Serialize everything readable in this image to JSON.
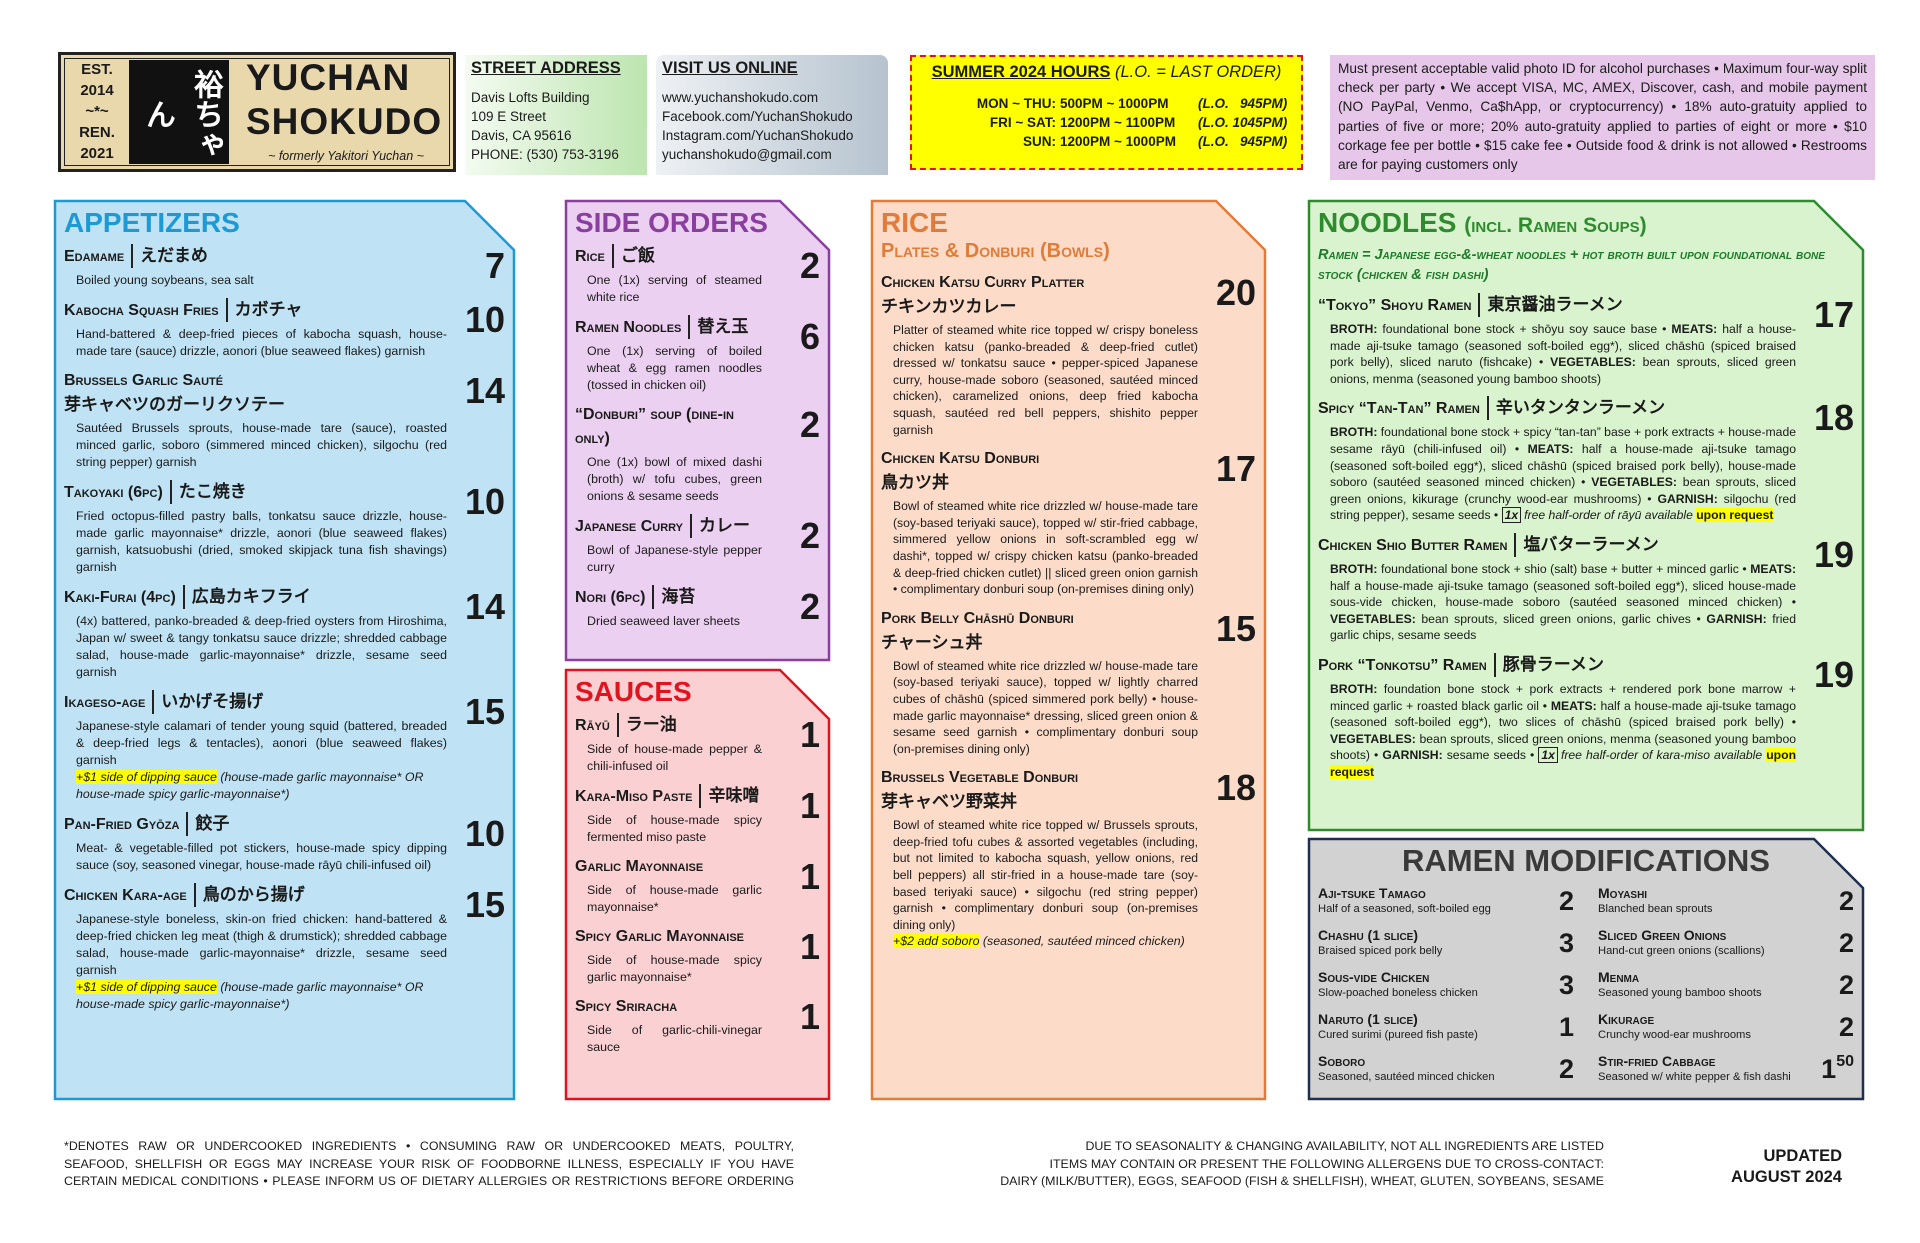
{
  "header": {
    "logo": {
      "est_label": "EST.",
      "est_year": "2014",
      "divider": "~*~",
      "ren_label": "REN.",
      "ren_year": "2021",
      "mark": "裕ちゃん",
      "name_line1": "YUCHAN",
      "name_line2": "SHOKUDO",
      "formerly": "~ formerly Yakitori Yuchan ~"
    },
    "address": {
      "heading": "STREET ADDRESS",
      "lines": [
        "Davis Lofts Building",
        "109 E Street",
        "Davis, CA 95616",
        "PHONE: (530) 753-3196"
      ]
    },
    "online": {
      "heading": "VISIT US ONLINE",
      "lines": [
        "www.yuchanshokudo.com",
        "Facebook.com/YuchanShokudo",
        "Instagram.com/YuchanShokudo",
        "yuchanshokudo@gmail.com"
      ]
    },
    "hours": {
      "title": "SUMMER 2024 HOURS",
      "note": "(L.O. = LAST ORDER)",
      "rows": [
        {
          "days": "MON ~ THU:",
          "time": "500PM ~ 1000PM",
          "lo": "(L.O.   945PM)"
        },
        {
          "days": "FRI ~ SAT:",
          "time": "1200PM ~ 1100PM",
          "lo": "(L.O. 1045PM)"
        },
        {
          "days": "SUN:",
          "time": "1200PM ~ 1000PM",
          "lo": "(L.O.   945PM)"
        }
      ]
    },
    "notice": "Must present acceptable valid photo ID for alcohol purchases • Maximum four-way split check per party • We accept VISA, MC, AMEX, Discover, cash, and mobile payment (NO PayPal, Venmo, Ca$hApp, or cryptocurrency) • 18% auto-gratuity applied to parties of five or more; 20% auto-gratuity applied to parties of eight or more • $10 corkage fee per bottle • $15 cake fee • Outside food & drink is not allowed • Restrooms are for paying customers only"
  },
  "appetizers": {
    "title": "APPETIZERS",
    "items": [
      {
        "name": "Edamame",
        "jp": "えだまめ",
        "price": "7",
        "desc": "Boiled young soybeans, sea salt"
      },
      {
        "name": "Kabocha Squash Fries",
        "jp": "カボチャ",
        "price": "10",
        "desc": "Hand-battered & deep-fried pieces of kabocha squash, house-made tare (sauce) drizzle, aonori (blue seaweed flakes) garnish"
      },
      {
        "name": "Brussels Garlic Sauté",
        "jp": "芽キャベツのガーリクソテー",
        "price": "14",
        "desc": "Sautéed Brussels sprouts, house-made tare (sauce), roasted minced garlic, soboro (simmered minced chicken), silgochu (red string pepper) garnish"
      },
      {
        "name": "Takoyaki (6pc)",
        "jp": "たこ焼き",
        "price": "10",
        "desc": "Fried octopus-filled pastry balls, tonkatsu sauce drizzle, house-made garlic mayonnaise* drizzle, aonori (blue seaweed flakes) garnish, katsuobushi (dried, smoked skipjack tuna fish shavings) garnish"
      },
      {
        "name": "Kaki-Furai (4pc)",
        "jp": "広島カキフライ",
        "price": "14",
        "desc": "(4x) battered, panko-breaded & deep-fried oysters from Hiroshima, Japan w/ sweet & tangy tonkatsu sauce drizzle; shredded cabbage salad, house-made garlic-mayonnaise* drizzle, sesame seed garnish"
      },
      {
        "name": "Ikageso-age",
        "jp": "いかげそ揚げ",
        "price": "15",
        "desc": "Japanese-style calamari of tender young squid (battered, breaded & deep-fried legs & tentacles), aonori (blue seaweed flakes) garnish",
        "addon": "+$1 side of dipping sauce",
        "addon_note": "(house-made garlic mayonnaise* OR house-made spicy garlic-mayonnaise*)"
      },
      {
        "name": "Pan-Fried Gyōza",
        "jp": "餃子",
        "price": "10",
        "desc": "Meat- & vegetable-filled pot stickers, house-made spicy dipping sauce (soy, seasoned vinegar, house-made rāyū chili-infused oil)"
      },
      {
        "name": "Chicken Kara-age",
        "jp": "鳥のから揚げ",
        "price": "15",
        "desc": "Japanese-style boneless, skin-on fried chicken: hand-battered & deep-fried chicken leg meat (thigh & drumstick); shredded cabbage salad, house-made garlic-mayonnaise* drizzle, sesame seed garnish",
        "addon": "+$1 side of dipping sauce",
        "addon_note": "(house-made garlic mayonnaise* OR house-made spicy garlic-mayonnaise*)"
      }
    ]
  },
  "side_orders": {
    "title": "SIDE ORDERS",
    "items": [
      {
        "name": "Rice",
        "jp": "ご飯",
        "price": "2",
        "desc": "One (1x) serving of steamed white rice"
      },
      {
        "name": "Ramen Noodles",
        "jp": "替え玉",
        "price": "6",
        "desc": "One (1x) serving of boiled wheat & egg ramen noodles (tossed in chicken oil)"
      },
      {
        "name": "“Donburi” soup (dine-in only)",
        "price": "2",
        "desc": "One (1x) bowl of mixed dashi (broth) w/ tofu cubes, green onions & sesame seeds"
      },
      {
        "name": "Japanese Curry",
        "jp": "カレー",
        "price": "2",
        "desc": "Bowl of Japanese-style pepper curry"
      },
      {
        "name": "Nori (6pc)",
        "jp": "海苔",
        "price": "2",
        "desc": "Dried seaweed laver sheets"
      }
    ]
  },
  "sauces": {
    "title": "SAUCES",
    "items": [
      {
        "name": "Rāyū",
        "jp": "ラー油",
        "price": "1",
        "desc": "Side of house-made pepper & chili-infused oil"
      },
      {
        "name": "Kara-Miso Paste",
        "jp": "辛味噌",
        "price": "1",
        "desc": "Side of house-made spicy fermented miso paste"
      },
      {
        "name": "Garlic Mayonnaise",
        "price": "1",
        "desc": "Side of house-made garlic mayonnaise*"
      },
      {
        "name": "Spicy Garlic Mayonnaise",
        "price": "1",
        "desc": "Side of house-made spicy garlic mayonnaise*"
      },
      {
        "name": "Spicy Sriracha",
        "price": "1",
        "desc": "Side of garlic-chili-vinegar sauce"
      }
    ]
  },
  "rice": {
    "title": "RICE",
    "subtitle": "Plates & Donburi (Bowls)",
    "items": [
      {
        "name": "Chicken Katsu Curry Platter",
        "jp": "チキンカツカレー",
        "price": "20",
        "desc": "Platter of steamed white rice topped w/ crispy boneless chicken katsu (panko-breaded & deep-fried cutlet) dressed w/ tonkatsu sauce • pepper-spiced Japanese curry, house-made soboro (seasoned, sautéed minced chicken), caramelized onions, deep fried kabocha squash, sautéed red bell peppers, shishito pepper garnish"
      },
      {
        "name": "Chicken Katsu Donburi",
        "jp": "鳥カツ丼",
        "price": "17",
        "desc": "Bowl of steamed white rice drizzled w/ house-made tare (soy-based teriyaki sauce), topped w/ stir-fried cabbage, simmered yellow onions in soft-scrambled egg w/ dashi*, topped w/ crispy chicken katsu (panko-breaded & deep-fried chicken cutlet) || sliced green onion garnish • complimentary donburi soup (on-premises dining only)"
      },
      {
        "name": "Pork Belly Chāshū Donburi",
        "jp": "チャーシュ丼",
        "price": "15",
        "desc": "Bowl of steamed white rice drizzled w/ house-made tare (soy-based teriyaki sauce), topped w/ lightly charred cubes of chāshū (spiced simmered pork belly) • house-made garlic mayonnaise* dressing, sliced green onion & sesame seed garnish • complimentary donburi soup (on-premises dining only)"
      },
      {
        "name": "Brussels Vegetable Donburi",
        "jp": "芽キャベツ野菜丼",
        "price": "18",
        "desc": "Bowl of steamed white rice topped w/ Brussels sprouts, deep-fried tofu cubes & assorted vegetables (including, but not limited to kabocha squash, yellow onions, red bell peppers) all stir-fried in a house-made tare (soy-based teriyaki sauce) • silgochu (red string pepper) garnish • complimentary donburi soup (on-premises dining only)",
        "addon": "+$2 add soboro",
        "addon_note": "(seasoned, sautéed minced chicken)"
      }
    ]
  },
  "noodles": {
    "title": "NOODLES",
    "title_note": "(incl. Ramen Soups)",
    "subtitle": "Ramen = Japanese egg-&-wheat noodles + hot broth built upon foundational bone stock (chicken & fish dashi)",
    "items": [
      {
        "name": "“Tokyo” Shoyu Ramen",
        "jp": "東京醤油ラーメン",
        "price": "17",
        "desc": "BROTH: foundational bone stock + shōyu soy sauce base • MEATS: half a house-made aji-tsuke tamago (seasoned soft-boiled egg*), sliced chāshū (spiced braised pork belly), sliced naruto (fishcake) • VEGETABLES: bean sprouts, sliced green onions, menma (seasoned young bamboo shoots)"
      },
      {
        "name": "Spicy “Tan-Tan” Ramen",
        "jp": "辛いタンタンラーメン",
        "price": "18",
        "desc": "BROTH: foundational bone stock + spicy “tan-tan” base + pork extracts + house-made sesame rāyū (chili-infused oil) • MEATS: half a house-made aji-tsuke tamago (seasoned soft-boiled egg*), sliced chāshū (spiced braised pork belly), house-made soboro (sautéed seasoned minced chicken) • VEGETABLES: bean sprouts, sliced green onions, kikurage (crunchy wood-ear mushrooms) • GARNISH: silgochu (red string pepper), sesame seeds •",
        "perk": {
          "badge": "1x",
          "text": "free half-order of rāyū available",
          "highlight": "upon request"
        }
      },
      {
        "name": "Chicken Shio Butter Ramen",
        "jp": "塩バターラーメン",
        "price": "19",
        "desc": "BROTH: foundational bone stock + shio (salt) base + butter + minced garlic • MEATS: half a house-made aji-tsuke tamago (seasoned soft-boiled egg*), sliced house-made sous-vide chicken, house-made soboro (sautéed seasoned minced chicken) • VEGETABLES: bean sprouts, sliced green onions, garlic chives • GARNISH: fried garlic chips, sesame seeds"
      },
      {
        "name": "Pork “Tonkotsu” Ramen",
        "jp": "豚骨ラーメン",
        "price": "19",
        "desc": "BROTH: foundation bone stock + pork extracts + rendered pork bone marrow + minced garlic + roasted black garlic oil • MEATS: half a house-made aji-tsuke tamago (seasoned soft-boiled egg*), two slices of chāshū (spiced braised pork belly) • VEGETABLES: bean sprouts, sliced green onions, menma (seasoned young bamboo shoots) • GARNISH: sesame seeds •",
        "perk": {
          "badge": "1x",
          "text": "free half-order of kara-miso available",
          "highlight": "upon request"
        }
      }
    ]
  },
  "ramen_modifications": {
    "title": "RAMEN MODIFICATIONS",
    "columns": [
      [
        {
          "name": "Aji-tsuke Tamago",
          "price": "2",
          "desc": "Half of a seasoned, soft-boiled egg"
        },
        {
          "name": "Chashu (1 slice)",
          "price": "3",
          "desc": "Braised spiced pork belly"
        },
        {
          "name": "Sous-vide Chicken",
          "price": "3",
          "desc": "Slow-poached boneless chicken"
        },
        {
          "name": "Naruto (1 slice)",
          "price": "1",
          "desc": "Cured surimi (pureed fish paste)"
        },
        {
          "name": "Soboro",
          "price": "2",
          "desc": "Seasoned, sautéed minced chicken"
        }
      ],
      [
        {
          "name": "Moyashi",
          "price": "2",
          "desc": "Blanched bean sprouts"
        },
        {
          "name": "Sliced Green Onions",
          "price": "2",
          "desc": "Hand-cut green onions (scallions)"
        },
        {
          "name": "Menma",
          "price": "2",
          "desc": "Seasoned young bamboo shoots"
        },
        {
          "name": "Kikurage",
          "price": "2",
          "desc": "Crunchy wood-ear mushrooms"
        },
        {
          "name": "Stir-fried Cabbage",
          "price": "1",
          "price_cents": "50",
          "desc": "Seasoned w/ white pepper & fish dashi"
        }
      ]
    ]
  },
  "footer": {
    "disclaimer": [
      "*DENOTES RAW OR UNDERCOOKED INGREDIENTS • CONSUMING RAW OR UNDERCOOKED MEATS, POULTRY,",
      "SEAFOOD, SHELLFISH OR EGGS MAY INCREASE YOUR RISK OF FOODBORNE ILLNESS, ESPECIALLY IF YOU HAVE",
      "CERTAIN MEDICAL CONDITIONS • PLEASE INFORM US OF DIETARY ALLERGIES OR RESTRICTIONS BEFORE ORDERING"
    ],
    "allergens": [
      "DUE TO SEASONALITY & CHANGING AVAILABILITY, NOT ALL INGREDIENTS ARE LISTED",
      "ITEMS MAY CONTAIN OR PRESENT THE FOLLOWING ALLERGENS DUE TO CROSS-CONTACT:",
      "DAIRY (MILK/BUTTER), EGGS, SEAFOOD (FISH & SHELLFISH), WHEAT, GLUTEN, SOYBEANS, SESAME"
    ],
    "updated": [
      "UPDATED",
      "AUGUST 2024"
    ]
  }
}
